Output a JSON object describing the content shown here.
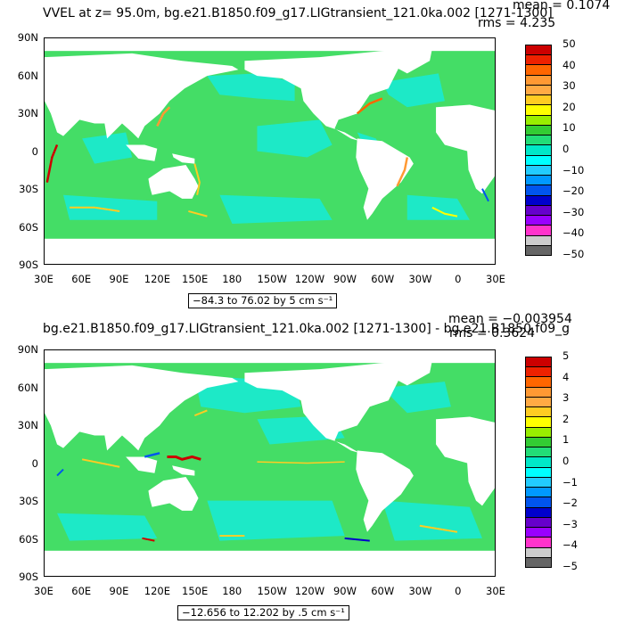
{
  "panel1": {
    "header_left": "VVEL at z=   95.0m, bg.e21.B1850.f09_g17.LIGtransient_121.0ka.002 [1271-1300]",
    "mean": "mean = 0.1074",
    "rms": "rms = 4.235",
    "range": "−84.3 to 76.02 by 5 cm s⁻¹",
    "colorbar_labels": [
      "50",
      "40",
      "30",
      "20",
      "10",
      "0",
      "−10",
      "−20",
      "−30",
      "−40",
      "−50"
    ]
  },
  "panel2": {
    "header_left": "bg.e21.B1850.f09_g17.LIGtransient_121.0ka.002 [1271-1300] - bg.e21.B1850.f09_g",
    "mean": "mean = −0.003954",
    "rms": "rms = 0.3624",
    "range": "−12.656 to 12.202 by .5 cm s⁻¹",
    "colorbar_labels": [
      "5",
      "4",
      "3",
      "2",
      "1",
      "0",
      "−1",
      "−2",
      "−3",
      "−4",
      "−5"
    ]
  },
  "axes": {
    "lat_labels": [
      "90N",
      "60N",
      "30N",
      "0",
      "30S",
      "60S",
      "90S"
    ],
    "lon_labels": [
      "30E",
      "60E",
      "90E",
      "120E",
      "150E",
      "180",
      "150W",
      "120W",
      "90W",
      "60W",
      "30W",
      "0",
      "30E"
    ]
  },
  "colors": {
    "swatches": [
      "#cc0000",
      "#ee2200",
      "#ff6600",
      "#ff9933",
      "#ffaa44",
      "#ffcc22",
      "#ffff00",
      "#99ee00",
      "#33cc33",
      "#22dd77",
      "#00e8c8",
      "#00ffff",
      "#22ccff",
      "#0099ff",
      "#0055ee",
      "#0000cc",
      "#6600cc",
      "#9900ff",
      "#ff33cc",
      "#cccccc",
      "#666666"
    ],
    "ocean_green": "#44dd66",
    "ocean_cyan": "#1de9c7",
    "land": "#ffffff"
  }
}
